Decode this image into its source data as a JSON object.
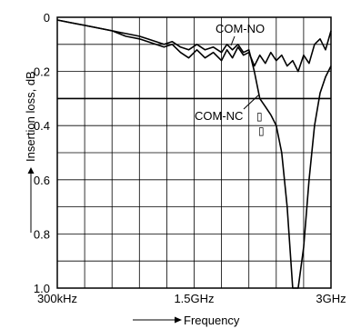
{
  "chart_data": {
    "type": "line",
    "title": "",
    "xlabel": "Frequency",
    "ylabel": "Insertion loss, dB",
    "xlim": [
      0,
      10
    ],
    "ylim": [
      1.0,
      0
    ],
    "x_ticks": [
      {
        "value": 0,
        "label": "300kHz"
      },
      {
        "value": 5,
        "label": "1.5GHz"
      },
      {
        "value": 10,
        "label": "3GHz"
      }
    ],
    "y_ticks": [
      {
        "value": 0,
        "label": "0"
      },
      {
        "value": 0.2,
        "label": "0.2"
      },
      {
        "value": 0.4,
        "label": "0.4"
      },
      {
        "value": 0.6,
        "label": "0.6"
      },
      {
        "value": 0.8,
        "label": "0.8"
      },
      {
        "value": 1.0,
        "label": "1.0"
      }
    ],
    "grid": true,
    "grid_x_count": 10,
    "grid_y_step": 0.1,
    "reference_line": 0.3,
    "series": [
      {
        "name": "COM-NO",
        "x": [
          0,
          0.5,
          1,
          1.5,
          2,
          2.5,
          3,
          3.3,
          3.6,
          3.9,
          4.2,
          4.5,
          4.8,
          5.1,
          5.4,
          5.7,
          6,
          6.2,
          6.4,
          6.6,
          6.8,
          7,
          7.2,
          7.4,
          7.6,
          7.8,
          8,
          8.2,
          8.4,
          8.6,
          8.8,
          9,
          9.2,
          9.4,
          9.6,
          9.8,
          10
        ],
        "y": [
          0.01,
          0.02,
          0.03,
          0.04,
          0.05,
          0.07,
          0.08,
          0.09,
          0.1,
          0.11,
          0.1,
          0.13,
          0.15,
          0.12,
          0.15,
          0.13,
          0.16,
          0.12,
          0.15,
          0.11,
          0.14,
          0.13,
          0.18,
          0.14,
          0.17,
          0.13,
          0.16,
          0.14,
          0.18,
          0.16,
          0.2,
          0.14,
          0.17,
          0.1,
          0.08,
          0.12,
          0.05
        ]
      },
      {
        "name": "COM-NC",
        "x": [
          0,
          0.5,
          1,
          1.5,
          2,
          2.5,
          3,
          3.3,
          3.6,
          3.9,
          4.2,
          4.5,
          4.8,
          5.1,
          5.4,
          5.7,
          6,
          6.2,
          6.4,
          6.6,
          6.8,
          7,
          7.2,
          7.4,
          7.6,
          7.8,
          8,
          8.2,
          8.4,
          8.6,
          8.8,
          9,
          9.2,
          9.4,
          9.6,
          9.8,
          10
        ],
        "y": [
          0.01,
          0.02,
          0.03,
          0.04,
          0.05,
          0.06,
          0.07,
          0.08,
          0.09,
          0.1,
          0.09,
          0.11,
          0.12,
          0.1,
          0.12,
          0.11,
          0.13,
          0.1,
          0.12,
          0.1,
          0.13,
          0.12,
          0.2,
          0.3,
          0.33,
          0.36,
          0.4,
          0.5,
          0.7,
          1.0,
          1.0,
          0.85,
          0.6,
          0.4,
          0.28,
          0.22,
          0.18
        ]
      }
    ]
  },
  "labels": {
    "com_no": "COM-NO",
    "com_nc": "COM-NC",
    "com_nc_box1": "▯",
    "com_nc_box2": "▯"
  }
}
